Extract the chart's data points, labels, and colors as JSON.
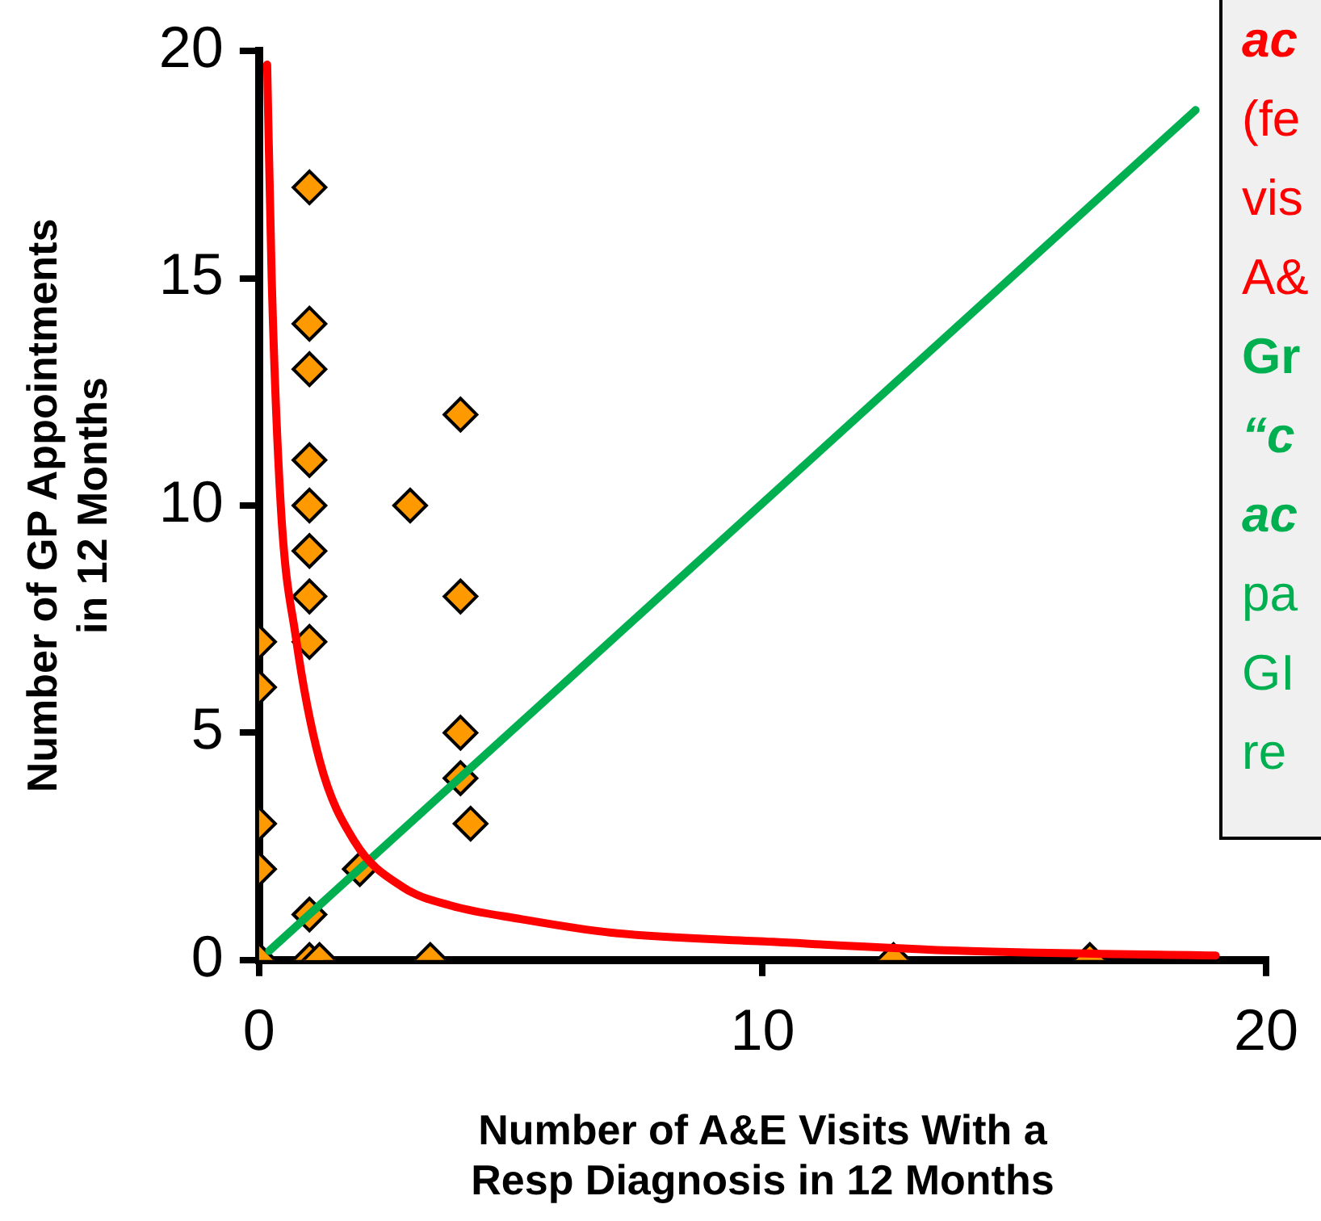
{
  "chart_data": {
    "type": "scatter",
    "xlabel": "Number of A&E Visits With a\nResp Diagnosis in 12 Months",
    "ylabel": "Number of GP Appointments\nin 12 Months",
    "xlim": [
      0,
      20
    ],
    "xticks": [
      0,
      10,
      20
    ],
    "ylim": [
      0,
      20
    ],
    "yticks": [
      0,
      5,
      10,
      15,
      20
    ],
    "grid": false,
    "legend": false,
    "marker": "diamond",
    "series": [
      {
        "color": "#ff9900",
        "x": [
          0,
          0,
          0,
          0,
          0,
          1,
          1,
          1,
          1,
          1,
          1,
          1,
          1,
          1,
          1,
          1.2,
          2,
          3,
          4,
          4,
          4,
          4,
          4.2,
          3.4,
          12.6,
          16.5
        ],
        "values": [
          7,
          6,
          3,
          2,
          0,
          17,
          14,
          13,
          11,
          10,
          9,
          8,
          7,
          1,
          0,
          0,
          2,
          10,
          12,
          8,
          5,
          4,
          3,
          0,
          0,
          0
        ]
      },
      {
        "type": "line",
        "color": "#ff0000",
        "marker": "none",
        "x": [
          0.16,
          0.25,
          0.43,
          0.73,
          1.2,
          1.9,
          2.86,
          3.8,
          5.2,
          7,
          10.2,
          14,
          19
        ],
        "values": [
          19.7,
          15,
          10,
          7.1,
          4.4,
          2.6,
          1.6,
          1.2,
          0.9,
          0.6,
          0.4,
          0.2,
          0.1
        ]
      },
      {
        "type": "line",
        "color": "#00b050",
        "marker": "none",
        "x": [
          0.2,
          18.6
        ],
        "values": [
          0.2,
          18.7
        ]
      }
    ],
    "annotations": [
      "ac",
      "(fe",
      "vis",
      "A&",
      "Gr",
      "“c",
      "ac",
      "pa",
      "GI",
      "re"
    ]
  }
}
